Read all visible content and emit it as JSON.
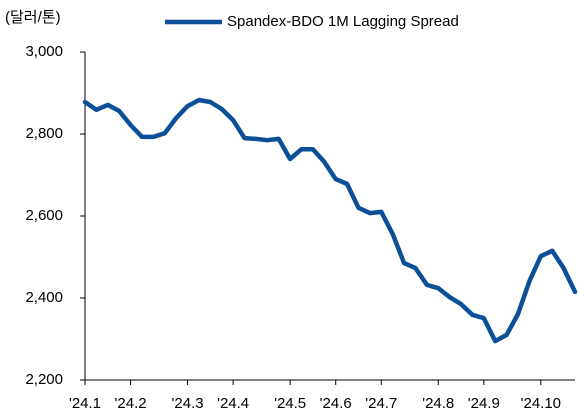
{
  "chart_data": {
    "type": "line",
    "y_label": "(달러/톤)",
    "categories": [
      "'24.1",
      null,
      null,
      null,
      "'24.2",
      null,
      null,
      null,
      null,
      "'24.3",
      null,
      null,
      null,
      "'24.4",
      null,
      null,
      null,
      null,
      "'24.5",
      null,
      null,
      null,
      "'24.6",
      null,
      null,
      null,
      "'24.7",
      null,
      null,
      null,
      null,
      "'24.8",
      null,
      null,
      null,
      "'24.9",
      null,
      null,
      null,
      null,
      "'24.10",
      null,
      null,
      null
    ],
    "series": [
      {
        "name": "Spandex-BDO 1M Lagging Spread",
        "color": "#0b4f96",
        "values": [
          2878,
          2859,
          2871,
          2856,
          2822,
          2793,
          2793,
          2802,
          2839,
          2868,
          2883,
          2878,
          2861,
          2834,
          2790,
          2788,
          2785,
          2788,
          2739,
          2763,
          2763,
          2732,
          2690,
          2678,
          2620,
          2607,
          2610,
          2556,
          2485,
          2473,
          2432,
          2424,
          2402,
          2385,
          2359,
          2351,
          2295,
          2310,
          2361,
          2441,
          2502,
          2515,
          2473,
          2415
        ]
      }
    ],
    "ylim": [
      2200,
      3000
    ],
    "yticks": [
      {
        "value": 2200,
        "label": "2,200"
      },
      {
        "value": 2400,
        "label": "2,400"
      },
      {
        "value": 2600,
        "label": "2,600"
      },
      {
        "value": 2800,
        "label": "2,800"
      },
      {
        "value": 3000,
        "label": "3,000"
      }
    ],
    "grid": false,
    "legend": "top"
  }
}
